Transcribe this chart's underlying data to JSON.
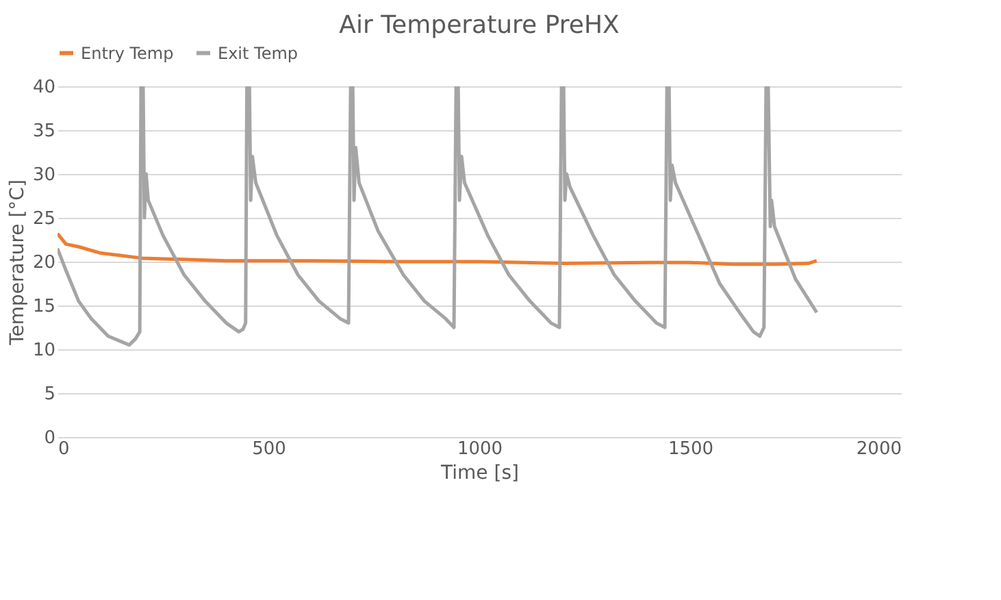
{
  "chart_data": {
    "type": "line",
    "title": "Air Temperature  PreHX",
    "xlabel": "Time [s]",
    "ylabel": "Temperature [°C]",
    "xlim": [
      0,
      2000
    ],
    "xticks": [
      0,
      500,
      1000,
      1500,
      2000
    ],
    "ylim": [
      0,
      40
    ],
    "yticks": [
      0,
      5,
      10,
      15,
      20,
      25,
      30,
      35,
      40
    ],
    "grid": "y",
    "legend": "top",
    "marker": "none",
    "line_style": "solid",
    "series": [
      {
        "name": "Entry Temp",
        "color": "#ed7d31",
        "x": [
          0,
          20,
          50,
          100,
          200,
          400,
          600,
          800,
          1000,
          1200,
          1400,
          1500,
          1600,
          1700,
          1780,
          1800
        ],
        "values": [
          23.2,
          22,
          21.7,
          21,
          20.4,
          20.1,
          20.1,
          20,
          20,
          19.8,
          19.9,
          19.9,
          19.7,
          19.7,
          19.8,
          20.1
        ]
      },
      {
        "name": "Exit Temp",
        "color": "#a5a5a5",
        "x": [
          0,
          20,
          50,
          80,
          120,
          170,
          185,
          195,
          198,
          203,
          206,
          210,
          215,
          250,
          300,
          350,
          400,
          430,
          440,
          446,
          449,
          455,
          458,
          462,
          470,
          520,
          570,
          620,
          670,
          690,
          695,
          700,
          703,
          707,
          715,
          760,
          820,
          870,
          920,
          940,
          945,
          950,
          953,
          958,
          965,
          1020,
          1070,
          1120,
          1170,
          1190,
          1195,
          1200,
          1203,
          1207,
          1215,
          1270,
          1320,
          1370,
          1420,
          1440,
          1445,
          1450,
          1453,
          1457,
          1465,
          1520,
          1570,
          1620,
          1650,
          1665,
          1675,
          1680,
          1685,
          1690,
          1693,
          1700,
          1750,
          1800
        ],
        "values": [
          21.5,
          19,
          15.5,
          13.5,
          11.5,
          10.5,
          11.2,
          12,
          40,
          40,
          25,
          30,
          27,
          23,
          18.5,
          15.5,
          13,
          12,
          12.3,
          13,
          40,
          40,
          27,
          32,
          29,
          23,
          18.5,
          15.5,
          13.5,
          13,
          40,
          40,
          27,
          33,
          29,
          23.5,
          18.5,
          15.5,
          13.5,
          12.5,
          40,
          40,
          27,
          32,
          29,
          23,
          18.5,
          15.5,
          13,
          12.5,
          40,
          40,
          27,
          30,
          28.5,
          23,
          18.5,
          15.5,
          13,
          12.5,
          40,
          40,
          27,
          31,
          29,
          23,
          17.5,
          14,
          12,
          11.5,
          12.5,
          40,
          40,
          24,
          27,
          24,
          18,
          14.2
        ]
      }
    ]
  }
}
